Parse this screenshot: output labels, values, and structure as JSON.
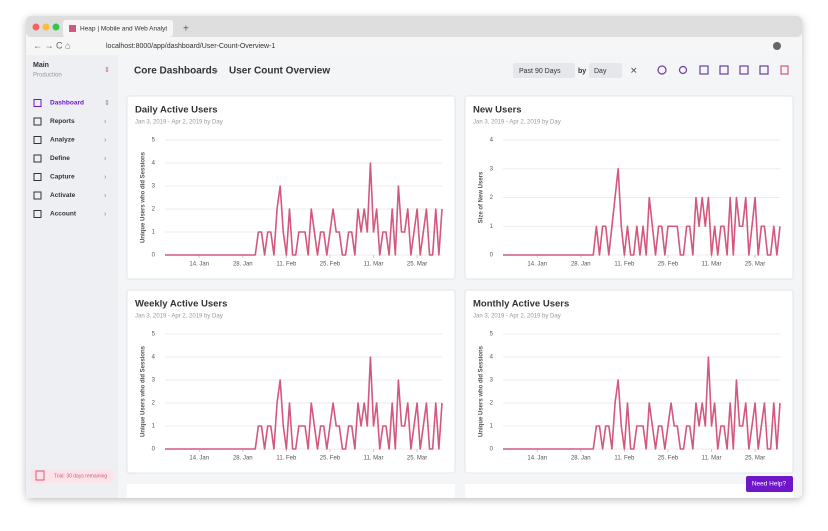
{
  "browser": {
    "tab_title": "Heap | Mobile and Web Analyt",
    "url": "localhost:8000/app/dashboard/User-Count-Overview-1"
  },
  "sidebar": {
    "env_name": "Main",
    "env_sub": "Production",
    "items": [
      "Dashboard",
      "Reports",
      "Analyze",
      "Define",
      "Capture",
      "Activate",
      "Account"
    ],
    "trial": "Trial: 30 days remaining"
  },
  "header": {
    "breadcrumb": [
      "Core Dashboards",
      "User Count Overview"
    ],
    "range": "Past 90 Days",
    "by": "by",
    "granularity": "Day"
  },
  "charts": [
    {
      "type": "line",
      "title": "Daily Active Users",
      "subtitle": "Jan 3, 2019 - Apr 2, 2019 by Day",
      "y_label": "Unique Users who did Sessions",
      "color": "#d4587e",
      "values": [
        0,
        0,
        0,
        0,
        0,
        0,
        0,
        0,
        0,
        0,
        0,
        0,
        0,
        0,
        0,
        0,
        0,
        0,
        0,
        0,
        0,
        0,
        0,
        0,
        0,
        0,
        0,
        0,
        0,
        0,
        1,
        1,
        0,
        1,
        1,
        0,
        2,
        3,
        1,
        0,
        2,
        0,
        0,
        1,
        1,
        1,
        0,
        2,
        1,
        0,
        1,
        1,
        0,
        1,
        2,
        1,
        1,
        0,
        0,
        1,
        1,
        0,
        2,
        1,
        2,
        1,
        4,
        1,
        2,
        0,
        1,
        1,
        0,
        2,
        0,
        3,
        1,
        1,
        2,
        0,
        1,
        2,
        0,
        1,
        2,
        0,
        0,
        2,
        0,
        2
      ],
      "xlim": [
        0,
        89
      ],
      "ylim": [
        0,
        5
      ],
      "yticks": [
        0,
        1,
        2,
        3,
        4,
        5
      ],
      "xticks": [
        {
          "value": 11,
          "label": "14. Jan"
        },
        {
          "value": 25,
          "label": "28. Jan"
        },
        {
          "value": 39,
          "label": "11. Feb"
        },
        {
          "value": 53,
          "label": "25. Feb"
        },
        {
          "value": 67,
          "label": "11. Mar"
        },
        {
          "value": 81,
          "label": "25. Mar"
        }
      ]
    },
    {
      "type": "line",
      "title": "New Users",
      "subtitle": "Jan 3, 2019 - Apr 2, 2019 by Day",
      "y_label": "Size of New Users",
      "color": "#d4587e",
      "values": [
        0,
        0,
        0,
        0,
        0,
        0,
        0,
        0,
        0,
        0,
        0,
        0,
        0,
        0,
        0,
        0,
        0,
        0,
        0,
        0,
        0,
        0,
        0,
        0,
        0,
        0,
        0,
        0,
        0,
        0,
        1,
        0,
        1,
        1,
        0,
        1,
        2,
        3,
        1,
        0,
        1,
        0,
        0,
        1,
        0,
        1,
        0,
        2,
        1,
        0,
        1,
        1,
        0,
        1,
        1,
        1,
        1,
        0,
        0,
        1,
        1,
        0,
        2,
        1,
        2,
        1,
        2,
        0,
        1,
        0,
        1,
        1,
        0,
        2,
        0,
        2,
        1,
        1,
        2,
        0,
        1,
        2,
        0,
        1,
        1,
        0,
        0,
        1,
        0,
        1
      ],
      "xlim": [
        0,
        89
      ],
      "ylim": [
        0,
        4
      ],
      "yticks": [
        0,
        1,
        2,
        3,
        4
      ],
      "xticks": [
        {
          "value": 11,
          "label": "14. Jan"
        },
        {
          "value": 25,
          "label": "28. Jan"
        },
        {
          "value": 39,
          "label": "11. Feb"
        },
        {
          "value": 53,
          "label": "25. Feb"
        },
        {
          "value": 67,
          "label": "11. Mar"
        },
        {
          "value": 81,
          "label": "25. Mar"
        }
      ]
    },
    {
      "type": "line",
      "title": "Weekly Active Users",
      "subtitle": "Jan 3, 2019 - Apr 2, 2019 by Day",
      "y_label": "Unique Users who did Sessions",
      "color": "#d4587e",
      "values": [
        0,
        0,
        0,
        0,
        0,
        0,
        0,
        0,
        0,
        0,
        0,
        0,
        0,
        0,
        0,
        0,
        0,
        0,
        0,
        0,
        0,
        0,
        0,
        0,
        0,
        0,
        0,
        0,
        0,
        0,
        1,
        1,
        0,
        1,
        1,
        0,
        2,
        3,
        1,
        0,
        2,
        0,
        0,
        1,
        1,
        1,
        0,
        2,
        1,
        0,
        1,
        1,
        0,
        1,
        2,
        1,
        1,
        0,
        0,
        1,
        1,
        0,
        2,
        1,
        2,
        1,
        4,
        1,
        2,
        0,
        1,
        1,
        0,
        2,
        0,
        3,
        1,
        1,
        2,
        0,
        1,
        2,
        0,
        1,
        2,
        0,
        0,
        2,
        0,
        2
      ],
      "xlim": [
        0,
        89
      ],
      "ylim": [
        0,
        5
      ],
      "yticks": [
        0,
        1,
        2,
        3,
        4,
        5
      ],
      "xticks": [
        {
          "value": 11,
          "label": "14. Jan"
        },
        {
          "value": 25,
          "label": "28. Jan"
        },
        {
          "value": 39,
          "label": "11. Feb"
        },
        {
          "value": 53,
          "label": "25. Feb"
        },
        {
          "value": 67,
          "label": "11. Mar"
        },
        {
          "value": 81,
          "label": "25. Mar"
        }
      ]
    },
    {
      "type": "line",
      "title": "Monthly Active Users",
      "subtitle": "Jan 3, 2019 - Apr 2, 2019 by Day",
      "y_label": "Unique Users who did Sessions",
      "color": "#d4587e",
      "values": [
        0,
        0,
        0,
        0,
        0,
        0,
        0,
        0,
        0,
        0,
        0,
        0,
        0,
        0,
        0,
        0,
        0,
        0,
        0,
        0,
        0,
        0,
        0,
        0,
        0,
        0,
        0,
        0,
        0,
        0,
        1,
        1,
        0,
        1,
        1,
        0,
        2,
        3,
        1,
        0,
        2,
        0,
        0,
        1,
        1,
        1,
        0,
        2,
        1,
        0,
        1,
        1,
        0,
        1,
        2,
        1,
        1,
        0,
        0,
        1,
        1,
        0,
        2,
        1,
        2,
        1,
        4,
        1,
        2,
        0,
        1,
        1,
        0,
        2,
        0,
        3,
        1,
        1,
        2,
        0,
        1,
        2,
        0,
        1,
        2,
        0,
        0,
        2,
        0,
        2
      ],
      "xlim": [
        0,
        89
      ],
      "ylim": [
        0,
        5
      ],
      "yticks": [
        0,
        1,
        2,
        3,
        4,
        5
      ],
      "xticks": [
        {
          "value": 11,
          "label": "14. Jan"
        },
        {
          "value": 25,
          "label": "28. Jan"
        },
        {
          "value": 39,
          "label": "11. Feb"
        },
        {
          "value": 53,
          "label": "25. Feb"
        },
        {
          "value": 67,
          "label": "11. Mar"
        },
        {
          "value": 81,
          "label": "25. Mar"
        }
      ]
    }
  ],
  "help": "Need Help?"
}
